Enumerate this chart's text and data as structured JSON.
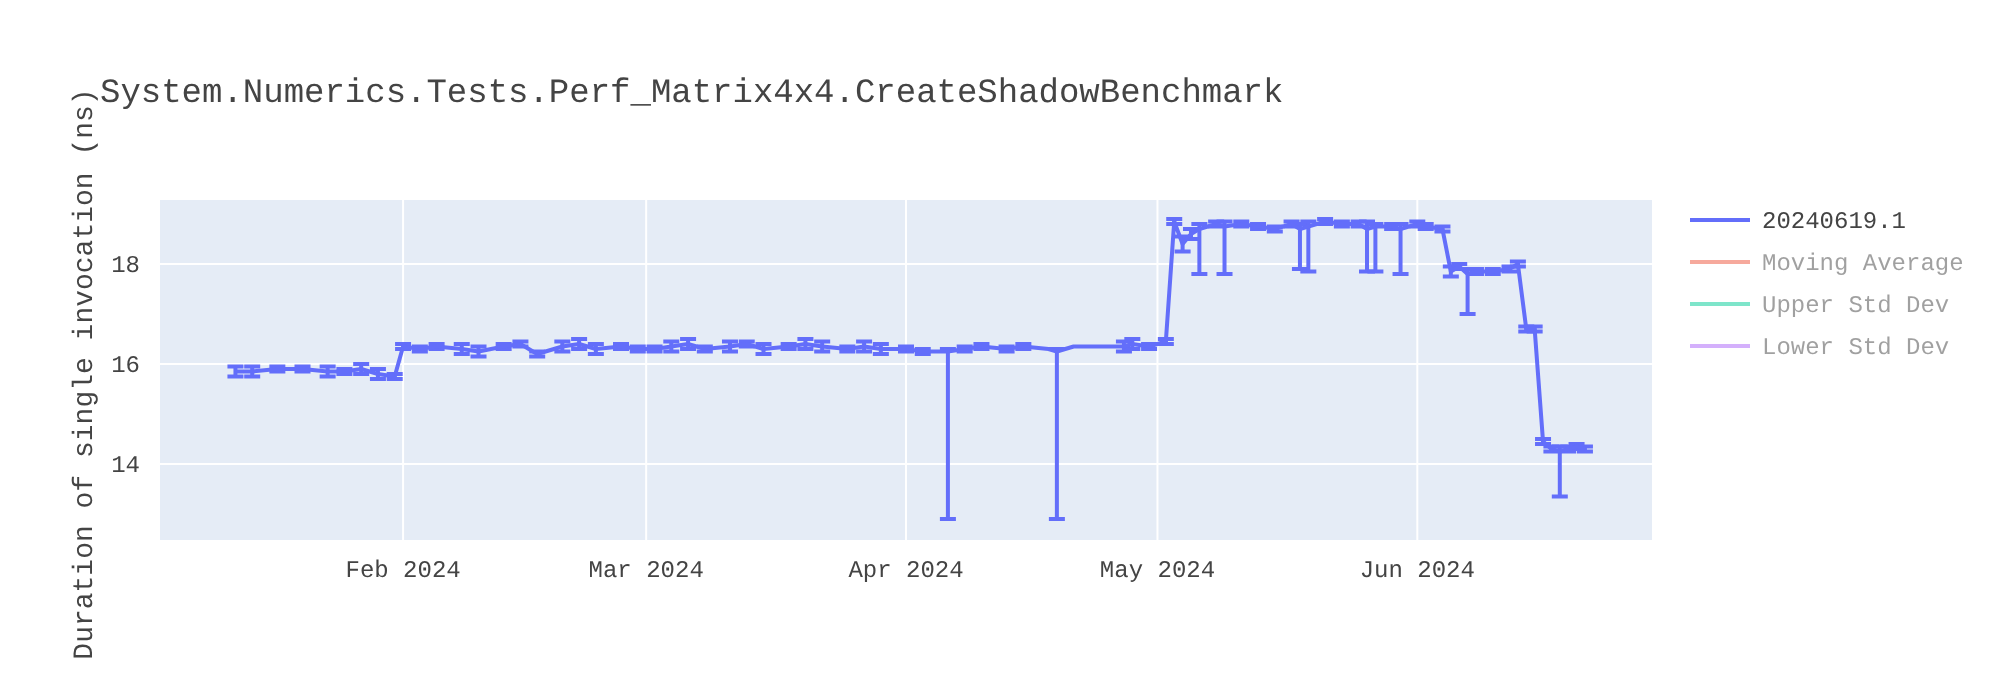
{
  "chart_data": {
    "type": "line",
    "title": "System.Numerics.Tests.Perf_Matrix4x4.CreateShadowBenchmark",
    "ylabel": "Duration of single invocation (ns)",
    "xlim": [
      "2024-01-03",
      "2024-06-29"
    ],
    "xticks": [
      {
        "value": "2024-02-01",
        "label": "Feb 2024"
      },
      {
        "value": "2024-03-01",
        "label": "Mar 2024"
      },
      {
        "value": "2024-04-01",
        "label": "Apr 2024"
      },
      {
        "value": "2024-05-01",
        "label": "May 2024"
      },
      {
        "value": "2024-06-01",
        "label": "Jun 2024"
      }
    ],
    "ylim": [
      12.48,
      19.28
    ],
    "yticks": [
      14,
      16,
      18
    ],
    "grid": true,
    "legend": "top right",
    "marker": "none",
    "line_style": "solid",
    "series": [
      {
        "name": "20240619.1",
        "color": "#636efa",
        "x": [
          "2024-01-12",
          "2024-01-14",
          "2024-01-17",
          "2024-01-20",
          "2024-01-23",
          "2024-01-25",
          "2024-01-27",
          "2024-01-29",
          "2024-01-31",
          "2024-02-01",
          "2024-02-03",
          "2024-02-05",
          "2024-02-08",
          "2024-02-10",
          "2024-02-13",
          "2024-02-15",
          "2024-02-17",
          "2024-02-20",
          "2024-02-22",
          "2024-02-24",
          "2024-02-27",
          "2024-02-29",
          "2024-03-02",
          "2024-03-04",
          "2024-03-06",
          "2024-03-08",
          "2024-03-11",
          "2024-03-13",
          "2024-03-15",
          "2024-03-18",
          "2024-03-20",
          "2024-03-22",
          "2024-03-25",
          "2024-03-27",
          "2024-03-29",
          "2024-04-01",
          "2024-04-03",
          "2024-04-06",
          "2024-04-08",
          "2024-04-10",
          "2024-04-13",
          "2024-04-15",
          "2024-04-18",
          "2024-04-19",
          "2024-04-21",
          "2024-04-24",
          "2024-04-27",
          "2024-04-28",
          "2024-04-30",
          "2024-05-02",
          "2024-05-03",
          "2024-05-04",
          "2024-05-05",
          "2024-05-06",
          "2024-05-08",
          "2024-05-09",
          "2024-05-11",
          "2024-05-13",
          "2024-05-15",
          "2024-05-17",
          "2024-05-18",
          "2024-05-19",
          "2024-05-21",
          "2024-05-23",
          "2024-05-25",
          "2024-05-26",
          "2024-05-27",
          "2024-05-29",
          "2024-05-30",
          "2024-06-01",
          "2024-06-02",
          "2024-06-04",
          "2024-06-05",
          "2024-06-06",
          "2024-06-07",
          "2024-06-08",
          "2024-06-10",
          "2024-06-12",
          "2024-06-13",
          "2024-06-14",
          "2024-06-15",
          "2024-06-16",
          "2024-06-17",
          "2024-06-18",
          "2024-06-19",
          "2024-06-20",
          "2024-06-21"
        ],
        "values": [
          15.85,
          15.85,
          15.9,
          15.9,
          15.85,
          15.85,
          15.9,
          15.8,
          15.75,
          16.35,
          16.3,
          16.35,
          16.3,
          16.25,
          16.35,
          16.4,
          16.2,
          16.35,
          16.4,
          16.3,
          16.35,
          16.3,
          16.3,
          16.35,
          16.4,
          16.3,
          16.35,
          16.4,
          16.3,
          16.35,
          16.4,
          16.35,
          16.3,
          16.35,
          16.3,
          16.3,
          16.25,
          16.25,
          16.3,
          16.35,
          16.3,
          16.35,
          16.3,
          16.25,
          16.35,
          16.35,
          16.35,
          16.4,
          16.35,
          16.45,
          18.85,
          18.4,
          18.6,
          18.7,
          18.8,
          18.75,
          18.8,
          18.75,
          18.7,
          18.8,
          18.7,
          18.75,
          18.85,
          18.8,
          18.8,
          18.7,
          18.75,
          18.75,
          18.7,
          18.8,
          18.75,
          18.7,
          17.85,
          17.95,
          17.8,
          17.85,
          17.85,
          17.9,
          18.0,
          16.7,
          16.7,
          14.45,
          14.3,
          14.25,
          14.3,
          14.35,
          14.3
        ],
        "errors": [
          0.1,
          0.1,
          0.05,
          0.05,
          0.1,
          0.05,
          0.1,
          0.1,
          0.05,
          0.05,
          0.05,
          0.05,
          0.1,
          0.1,
          0.05,
          0.05,
          0.05,
          0.1,
          0.1,
          0.1,
          0.05,
          0.05,
          0.05,
          0.1,
          0.1,
          0.05,
          0.1,
          0.05,
          0.1,
          0.05,
          0.1,
          0.1,
          0.05,
          0.1,
          0.1,
          0.05,
          0.05,
          [
            12.9,
            16.3
          ],
          0.05,
          0.05,
          0.05,
          0.05,
          null,
          [
            12.9,
            16.3
          ],
          null,
          null,
          0.1,
          0.1,
          0.05,
          0.05,
          0.05,
          0.15,
          0.1,
          [
            17.8,
            18.8
          ],
          0.05,
          [
            17.8,
            18.85
          ],
          0.05,
          0.05,
          0.05,
          0.05,
          [
            17.9,
            18.8
          ],
          [
            17.85,
            18.85
          ],
          0.05,
          0.05,
          0.05,
          [
            17.85,
            18.85
          ],
          [
            17.85,
            18.8
          ],
          0.05,
          [
            17.8,
            18.8
          ],
          0.05,
          0.05,
          0.05,
          0.1,
          0.05,
          [
            17.0,
            17.9
          ],
          0.05,
          0.05,
          0.05,
          0.05,
          0.05,
          0.05,
          0.05,
          0.05,
          [
            13.35,
            14.35
          ],
          0.05,
          0.05,
          0.05
        ]
      },
      {
        "name": "Moving Average",
        "color": "#ef553b"
      },
      {
        "name": "Upper Std Dev",
        "color": "#00cc96"
      },
      {
        "name": "Lower Std Dev",
        "color": "#ab63fa"
      }
    ]
  }
}
